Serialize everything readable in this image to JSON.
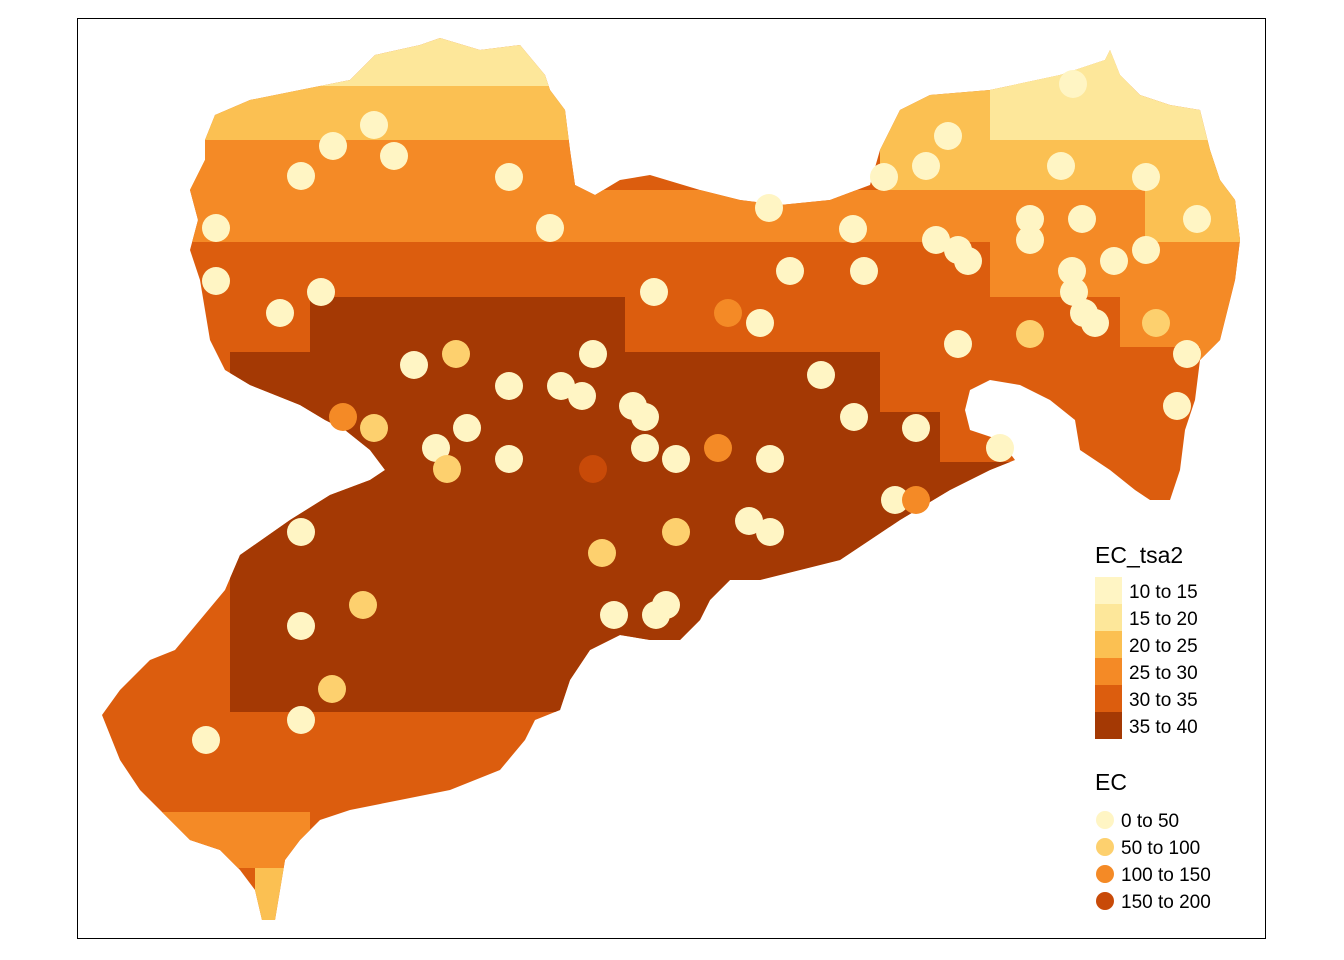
{
  "map": {
    "raster_legend": {
      "title": "EC_tsa2",
      "classes": [
        {
          "label": "10 to 15",
          "color": "#FFF5C4"
        },
        {
          "label": "15 to 20",
          "color": "#FDE79A"
        },
        {
          "label": "20 to 25",
          "color": "#FBC052"
        },
        {
          "label": "25 to 30",
          "color": "#F48A26"
        },
        {
          "label": "30 to 35",
          "color": "#DC5D0E"
        },
        {
          "label": "35 to 40",
          "color": "#A43904"
        }
      ]
    },
    "point_legend": {
      "title": "EC",
      "classes": [
        {
          "label": "0 to 50",
          "color": "#FFF5C4"
        },
        {
          "label": "50 to 100",
          "color": "#FDD06E"
        },
        {
          "label": "100 to 150",
          "color": "#F48A26"
        },
        {
          "label": "150 to 200",
          "color": "#C84A08"
        }
      ]
    }
  }
}
